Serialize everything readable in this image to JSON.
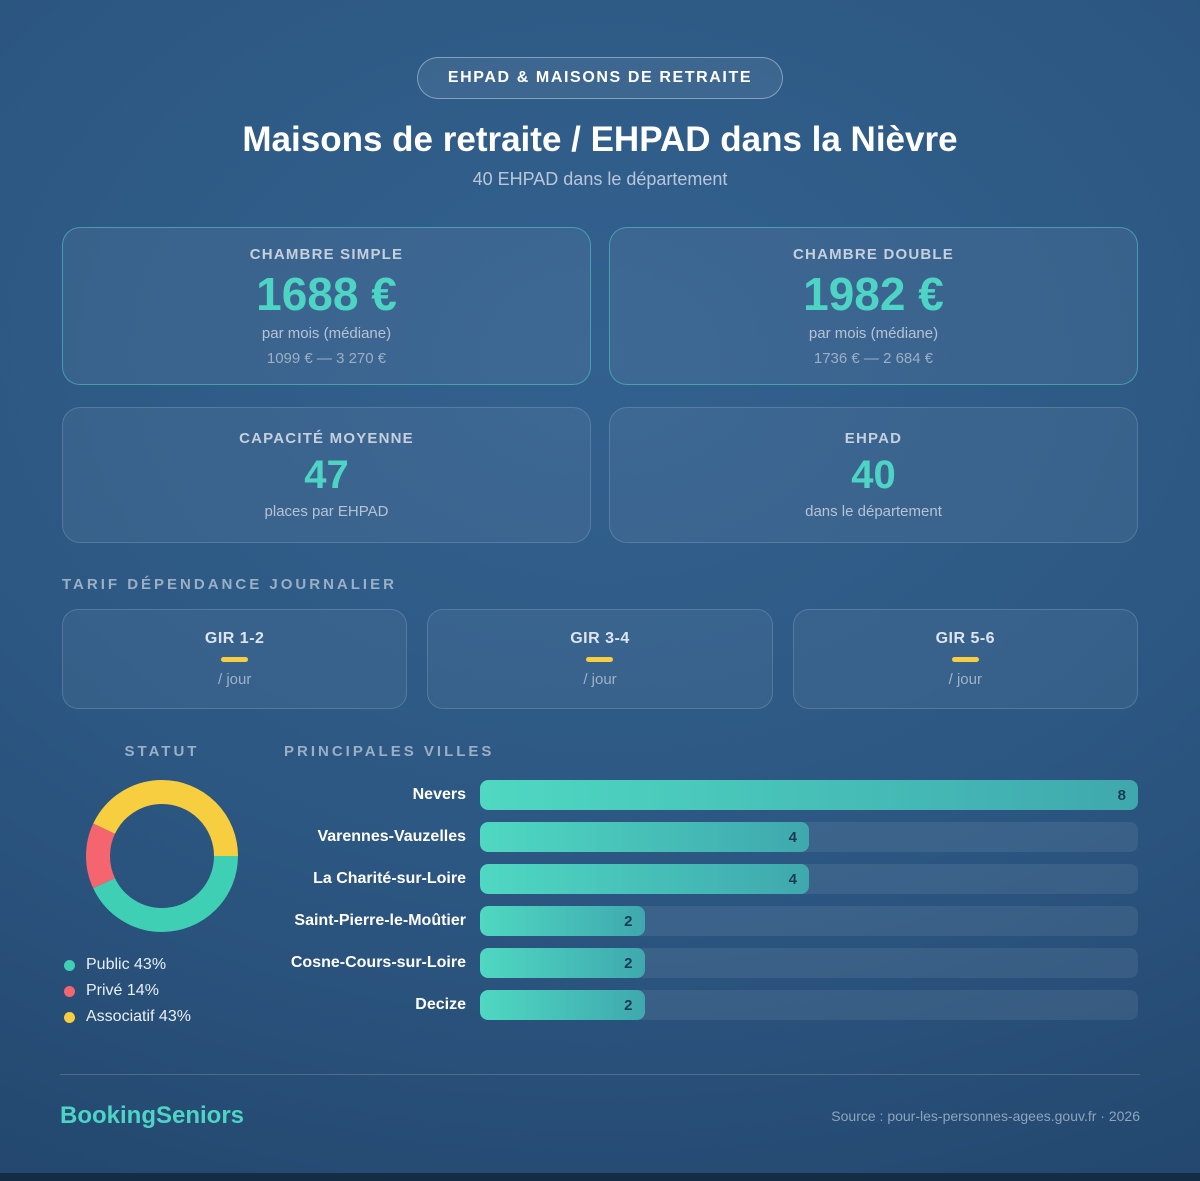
{
  "badge": "EHPAD & MAISONS DE RETRAITE",
  "title": "Maisons de retraite / EHPAD dans la Nièvre",
  "subtitle": "40 EHPAD dans le département",
  "stats": {
    "cards": [
      {
        "title": "CHAMBRE SIMPLE",
        "value": "1688 €",
        "sub": "par mois (médiane)",
        "range": "1099 € — 3 270 €"
      },
      {
        "title": "CHAMBRE DOUBLE",
        "value": "1982 €",
        "sub": "par mois (médiane)",
        "range": "1736 € — 2 684 €"
      },
      {
        "title": "CAPACITÉ MOYENNE",
        "value": "47",
        "sub": "places par EHPAD"
      },
      {
        "title": "EHPAD",
        "value": "40",
        "sub": "dans le département"
      }
    ]
  },
  "tarif": {
    "heading": "TARIF DÉPENDANCE JOURNALIER",
    "cards": [
      {
        "label": "GIR 1-2",
        "unit": "/ jour"
      },
      {
        "label": "GIR 3-4",
        "unit": "/ jour"
      },
      {
        "label": "GIR 5-6",
        "unit": "/ jour"
      }
    ]
  },
  "statut": {
    "heading": "STATUT"
  },
  "villes": {
    "heading": "PRINCIPALES VILLES"
  },
  "chart_data": [
    {
      "type": "pie",
      "title": "STATUT",
      "donut": true,
      "labels": [
        "Public",
        "Privé",
        "Associatif"
      ],
      "values": [
        43,
        14,
        43
      ],
      "colors": [
        "#3ecfb4",
        "#f4656f",
        "#f7ce3f"
      ],
      "legend": [
        "Public 43%",
        "Privé 14%",
        "Associatif 43%"
      ],
      "legend_position": "bottom-left",
      "start_angle_deg_from_east_clockwise": 0
    },
    {
      "type": "bar",
      "title": "PRINCIPALES VILLES",
      "orientation": "horizontal",
      "categories": [
        "Nevers",
        "Varennes-Vauzelles",
        "La Charité-sur-Loire",
        "Saint-Pierre-le-Moûtier",
        "Cosne-Cours-sur-Loire",
        "Decize"
      ],
      "values": [
        8,
        4,
        4,
        2,
        2,
        2
      ],
      "xlim": [
        0,
        8
      ],
      "grid": false,
      "value_labels": "inside-end"
    }
  ],
  "footer": {
    "brand": "BookingSeniors",
    "source": "Source : pour-les-personnes-agees.gouv.fr · 2026"
  },
  "colors": {
    "accent_teal": "#4ed4c5",
    "accent_yellow": "#f7ce3f",
    "accent_red": "#f4656f",
    "bar_gradient_start": "#4fd8c2",
    "bar_gradient_end": "#3fa8ae",
    "bar_value_text": "#1c3a57",
    "background_center": "#33618f",
    "background_edge": "#1e3c60"
  }
}
